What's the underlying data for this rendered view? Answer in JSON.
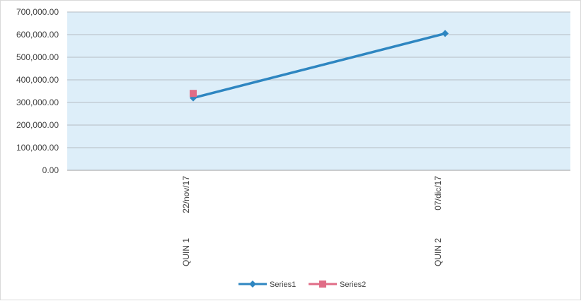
{
  "chart_data": {
    "type": "line",
    "categories": [
      [
        "QUIN 1",
        "22/nov/17"
      ],
      [
        "QUIN 2",
        "07/dic/17"
      ]
    ],
    "series": [
      {
        "name": "Series1",
        "values": [
          320000,
          605000
        ],
        "color": "#2e86c1",
        "marker": "diamond"
      },
      {
        "name": "Series2",
        "values": [
          340000,
          null
        ],
        "color": "#e06c86",
        "marker": "square"
      }
    ],
    "ylim": [
      0,
      700000
    ],
    "yticks": [
      0,
      100000,
      200000,
      300000,
      400000,
      500000,
      600000,
      700000
    ],
    "ytick_labels": [
      "0.00",
      "100,000.00",
      "200,000.00",
      "300,000.00",
      "400,000.00",
      "500,000.00",
      "600,000.00",
      "700,000.00"
    ],
    "grid": true,
    "plot_background": "#ddeef9",
    "legend_position": "bottom"
  }
}
